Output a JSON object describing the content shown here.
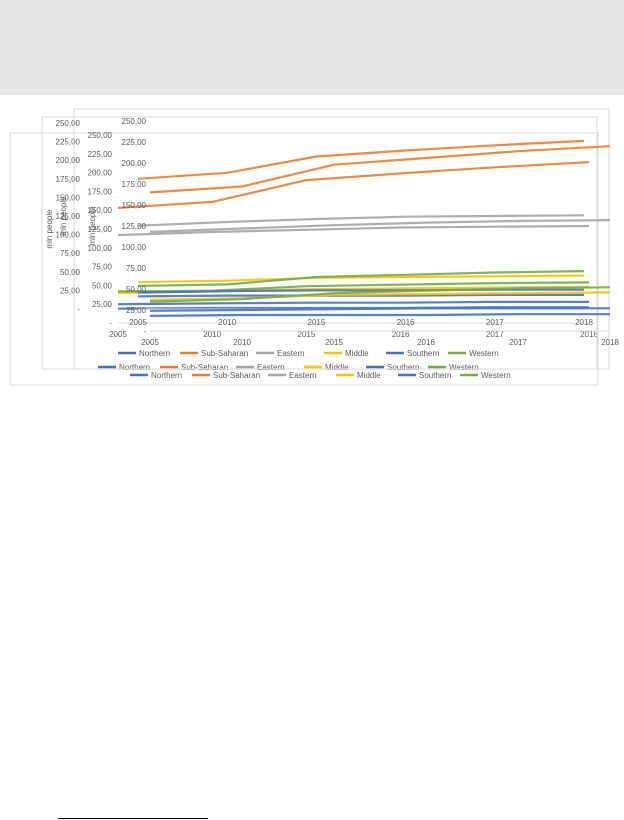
{
  "chart_data": [
    {
      "type": "line",
      "ylabel": "mln people",
      "ylim": [
        0,
        250
      ],
      "y_ticks": [
        "-",
        "25,00",
        "50,00",
        "75,00",
        "100,00",
        "125,00",
        "150,00",
        "175,00",
        "200,00",
        "225,00",
        "250,00"
      ],
      "x": [
        "2005",
        "2010",
        "2015",
        "2016",
        "2017",
        "2018"
      ],
      "legend_position": "bottom",
      "series": [
        {
          "name": "Northern",
          "color": "#4472c4",
          "values": [
            25,
            26,
            27,
            27,
            28,
            28
          ]
        },
        {
          "name": "Sub-Saharan",
          "color": "#ed7d31",
          "values": [
            153,
            161,
            190,
            199,
            207,
            214
          ]
        },
        {
          "name": "Eastern",
          "color": "#a5a5a5",
          "values": [
            117,
            121,
            124,
            127,
            128,
            129
          ]
        },
        {
          "name": "Middle",
          "color": "#ffc000",
          "values": [
            40,
            42,
            45,
            46,
            47,
            48
          ]
        },
        {
          "name": "Southern",
          "color": "#4472c4",
          "values": [
            19,
            20,
            20,
            20,
            21,
            21
          ]
        },
        {
          "name": "Western",
          "color": "#70ad47",
          "values": [
            42,
            43,
            49,
            51,
            53,
            54
          ]
        }
      ]
    },
    {
      "type": "line",
      "ylabel": "mln people",
      "ylim": [
        0,
        250
      ],
      "y_ticks": [
        "-",
        "25,00",
        "50,00",
        "75,00",
        "100,00",
        "125,00",
        "150,00",
        "175,00",
        "200,00",
        "225,00",
        "250,00"
      ],
      "x": [
        "2005",
        "2010",
        "2015",
        "2016",
        "2017",
        "2018"
      ],
      "legend_position": "bottom",
      "series": [
        {
          "name": "Northern",
          "color": "#4472c4",
          "values": [
            22,
            24,
            25,
            25,
            26,
            26
          ]
        },
        {
          "name": "Sub-Saharan",
          "color": "#ed7d31",
          "values": [
            175,
            183,
            205,
            213,
            220,
            226
          ]
        },
        {
          "name": "Eastern",
          "color": "#a5a5a5",
          "values": [
            112,
            117,
            121,
            124,
            125,
            126
          ]
        },
        {
          "name": "Middle",
          "color": "#ffc000",
          "values": [
            36,
            38,
            42,
            43,
            44,
            45
          ]
        },
        {
          "name": "Southern",
          "color": "#4472c4",
          "values": [
            17,
            18,
            18,
            18,
            19,
            19
          ]
        },
        {
          "name": "Western",
          "color": "#70ad47",
          "values": [
            31,
            33,
            43,
            46,
            49,
            51
          ]
        }
      ]
    },
    {
      "type": "line",
      "ylabel": "mln people",
      "ylim": [
        0,
        250
      ],
      "y_ticks": [
        "-",
        "25,00",
        "50,00",
        "75,00",
        "100,00",
        "125,00",
        "150,00",
        "175,00",
        "200,00",
        "225,00",
        "250,00"
      ],
      "x": [
        "2005",
        "2010",
        "2015",
        "2016",
        "2017",
        "2018"
      ],
      "legend_position": "bottom",
      "series": [
        {
          "name": "Northern",
          "color": "#4472c4",
          "values": [
            24,
            25,
            26,
            27,
            27,
            27
          ]
        },
        {
          "name": "Sub-Saharan",
          "color": "#ed7d31",
          "values": [
            165,
            172,
            198,
            206,
            214,
            220
          ]
        },
        {
          "name": "Eastern",
          "color": "#a5a5a5",
          "values": [
            118,
            122,
            126,
            129,
            131,
            132
          ]
        },
        {
          "name": "Middle",
          "color": "#ffc000",
          "values": [
            37,
            39,
            43,
            44,
            45,
            46
          ]
        },
        {
          "name": "Southern",
          "color": "#4472c4",
          "values": [
            18,
            19,
            19,
            19,
            20,
            20
          ]
        },
        {
          "name": "Western",
          "color": "#70ad47",
          "values": [
            35,
            38,
            45,
            48,
            51,
            52
          ]
        }
      ]
    }
  ]
}
